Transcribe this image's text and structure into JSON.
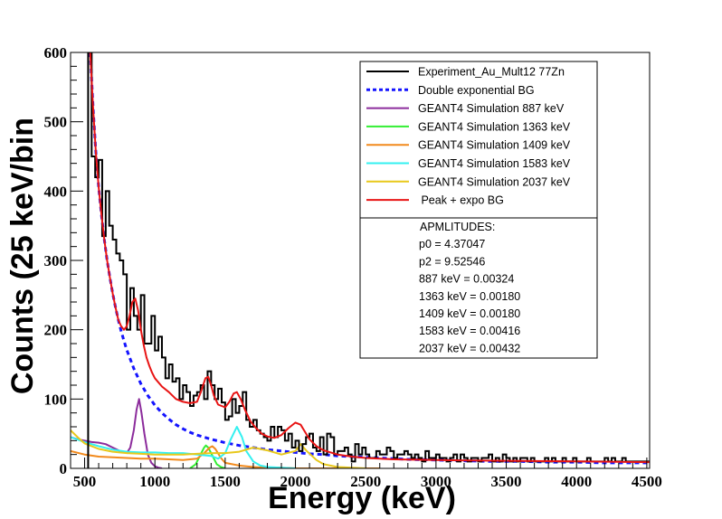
{
  "chart_data": {
    "type": "line",
    "xlabel": "Energy (keV)",
    "ylabel": "Counts (25 keV/bin",
    "xlim": [
      400,
      4520
    ],
    "ylim": [
      0,
      600
    ],
    "x_ticks": [
      500,
      1000,
      1500,
      2000,
      2500,
      3000,
      3500,
      4000,
      4500
    ],
    "y_ticks": [
      0,
      100,
      200,
      300,
      400,
      500,
      600
    ],
    "grid": false,
    "legend_position": "top-right",
    "series": [
      {
        "name": "Experiment_Au_Mult12 77Zn",
        "style": "histogram",
        "color": "#000000",
        "bin_width": 25,
        "x_start": 525,
        "values": [
          600,
          450,
          420,
          445,
          335,
          400,
          350,
          330,
          310,
          300,
          280,
          200,
          260,
          220,
          200,
          250,
          180,
          180,
          220,
          170,
          190,
          160,
          130,
          150,
          125,
          130,
          100,
          120,
          110,
          90,
          105,
          110,
          120,
          100,
          140,
          120,
          100,
          115,
          95,
          70,
          75,
          100,
          80,
          90,
          110,
          70,
          60,
          70,
          55,
          50,
          45,
          40,
          60,
          45,
          60,
          55,
          40,
          50,
          30,
          40,
          25,
          35,
          45,
          50,
          30,
          25,
          45,
          20,
          50,
          45,
          20,
          25,
          25,
          30,
          20,
          10,
          35,
          20,
          30,
          20,
          15,
          15,
          25,
          20,
          20,
          30,
          25,
          15,
          20,
          20,
          25,
          20,
          15,
          20,
          15,
          10,
          25,
          15,
          15,
          20,
          15,
          15,
          10,
          15,
          20,
          10,
          20,
          15,
          10,
          15,
          15,
          10,
          15,
          15,
          20,
          10,
          15,
          10,
          20,
          15,
          10,
          15,
          10,
          15,
          15,
          10,
          15,
          10,
          10,
          10,
          15,
          10,
          15,
          10,
          10,
          15,
          10,
          10,
          15,
          10,
          10,
          10,
          15,
          10,
          10,
          10,
          10,
          15,
          10,
          15,
          10,
          10,
          15,
          10,
          10,
          10,
          10,
          10,
          10,
          10,
          10
        ]
      },
      {
        "name": "Double exponential BG",
        "style": "dashed",
        "color": "#1414ff",
        "x": [
          540,
          560,
          580,
          600,
          620,
          640,
          660,
          680,
          700,
          720,
          740,
          760,
          780,
          800,
          850,
          900,
          950,
          1000,
          1050,
          1100,
          1150,
          1200,
          1250,
          1300,
          1350,
          1400,
          1500,
          1600,
          1700,
          1800,
          1900,
          2000,
          2100,
          2200,
          2300,
          2400,
          2500,
          2600,
          2700,
          2800,
          3000,
          3200,
          3400,
          3600,
          3800,
          4000,
          4200,
          4400,
          4520
        ],
        "y": [
          600,
          520,
          455,
          405,
          365,
          330,
          300,
          275,
          252,
          232,
          214,
          198,
          184,
          171,
          144,
          122,
          105,
          91,
          80,
          71,
          63,
          57,
          52,
          48,
          45,
          42,
          37,
          33,
          30,
          27,
          25,
          23,
          21,
          20,
          18,
          17,
          16,
          15,
          14,
          13,
          12,
          11,
          10,
          10,
          9,
          9,
          8,
          8,
          8
        ]
      },
      {
        "name": "GEANT4 Simulation 887 keV",
        "style": "line",
        "color": "#8c2c9c",
        "x": [
          400,
          450,
          500,
          550,
          600,
          650,
          700,
          750,
          800,
          825,
          850,
          870,
          887,
          905,
          925,
          950,
          975,
          1000,
          1025,
          1050
        ],
        "y": [
          45,
          42,
          40,
          38,
          37,
          35,
          30,
          25,
          22,
          30,
          55,
          85,
          100,
          80,
          50,
          20,
          8,
          3,
          1,
          0
        ]
      },
      {
        "name": "GEANT4 Simulation 1363 keV",
        "style": "line",
        "color": "#33ee33",
        "x": [
          1250,
          1290,
          1320,
          1350,
          1363,
          1380,
          1410,
          1440,
          1470,
          1500
        ],
        "y": [
          0,
          6,
          18,
          30,
          33,
          30,
          18,
          6,
          2,
          0
        ]
      },
      {
        "name": "GEANT4 Simulation 1409 keV",
        "style": "line",
        "color": "#f28a1c",
        "x": [
          400,
          500,
          600,
          700,
          800,
          900,
          1000,
          1100,
          1200,
          1300,
          1350,
          1390,
          1409,
          1430,
          1470,
          1500,
          1600,
          1700,
          1800,
          1900,
          2000,
          2200,
          2400,
          2600
        ],
        "y": [
          25,
          20,
          17,
          16,
          15,
          14,
          14,
          13,
          12,
          14,
          22,
          30,
          32,
          28,
          15,
          8,
          4,
          2,
          1,
          1,
          0,
          0,
          0,
          0
        ]
      },
      {
        "name": "GEANT4 Simulation 1583 keV",
        "style": "line",
        "color": "#33f0f0",
        "x": [
          400,
          500,
          600,
          700,
          800,
          900,
          1000,
          1100,
          1200,
          1300,
          1400,
          1450,
          1500,
          1540,
          1583,
          1620,
          1650,
          1700,
          1750,
          1800,
          1900,
          2000
        ],
        "y": [
          45,
          38,
          32,
          27,
          24,
          23,
          23,
          22,
          22,
          20,
          18,
          14,
          22,
          42,
          60,
          45,
          25,
          10,
          4,
          2,
          1,
          0
        ],
        "note": ""
      },
      {
        "name": "GEANT4 Simulation 2037 keV",
        "style": "line",
        "color": "#e8c81a",
        "x": [
          400,
          450,
          500,
          600,
          700,
          800,
          900,
          1000,
          1100,
          1200,
          1300,
          1400,
          1500,
          1600,
          1700,
          1800,
          1900,
          2000,
          2037,
          2080,
          2150,
          2200,
          2300,
          2400,
          2500
        ],
        "y": [
          55,
          45,
          36,
          28,
          24,
          22,
          21,
          20,
          20,
          20,
          21,
          22,
          22,
          24,
          30,
          26,
          20,
          25,
          35,
          25,
          12,
          6,
          2,
          1,
          0
        ]
      },
      {
        "name": " Peak + expo BG",
        "style": "line",
        "color": "#e81414",
        "x": [
          540,
          560,
          580,
          600,
          620,
          640,
          660,
          680,
          700,
          720,
          740,
          760,
          780,
          800,
          820,
          840,
          860,
          880,
          900,
          920,
          940,
          960,
          980,
          1000,
          1050,
          1100,
          1150,
          1200,
          1250,
          1300,
          1330,
          1360,
          1380,
          1400,
          1420,
          1450,
          1500,
          1530,
          1560,
          1583,
          1610,
          1640,
          1680,
          1720,
          1760,
          1800,
          1850,
          1900,
          1950,
          2000,
          2037,
          2070,
          2100,
          2150,
          2200,
          2300,
          2400,
          2500,
          2700,
          3000,
          3500,
          4000,
          4500,
          4520
        ],
        "y": [
          600,
          520,
          455,
          405,
          365,
          330,
          300,
          275,
          252,
          232,
          214,
          205,
          200,
          205,
          220,
          240,
          245,
          228,
          200,
          178,
          160,
          148,
          138,
          130,
          118,
          110,
          100,
          96,
          94,
          96,
          112,
          130,
          132,
          120,
          105,
          92,
          88,
          96,
          108,
          110,
          100,
          85,
          68,
          58,
          50,
          46,
          44,
          48,
          58,
          66,
          63,
          52,
          42,
          32,
          26,
          20,
          17,
          15,
          13,
          12,
          11,
          10,
          9,
          9
        ]
      }
    ],
    "legend_entries": [
      "Experiment_Au_Mult12 77Zn",
      "Double exponential BG",
      "GEANT4 Simulation 887 keV",
      "GEANT4 Simulation 1363 keV",
      "GEANT4 Simulation 1409 keV",
      "GEANT4 Simulation 1583 keV",
      "GEANT4 Simulation 2037 keV",
      " Peak + expo BG"
    ],
    "annotations": [
      "APMLITUDES:",
      "p0 = 4.37047",
      "p2 = 9.52546",
      "887 keV = 0.00324",
      "1363 keV = 0.00180",
      "1409 keV = 0.00180",
      "1583 keV = 0.00416",
      "2037 keV = 0.00432"
    ]
  }
}
